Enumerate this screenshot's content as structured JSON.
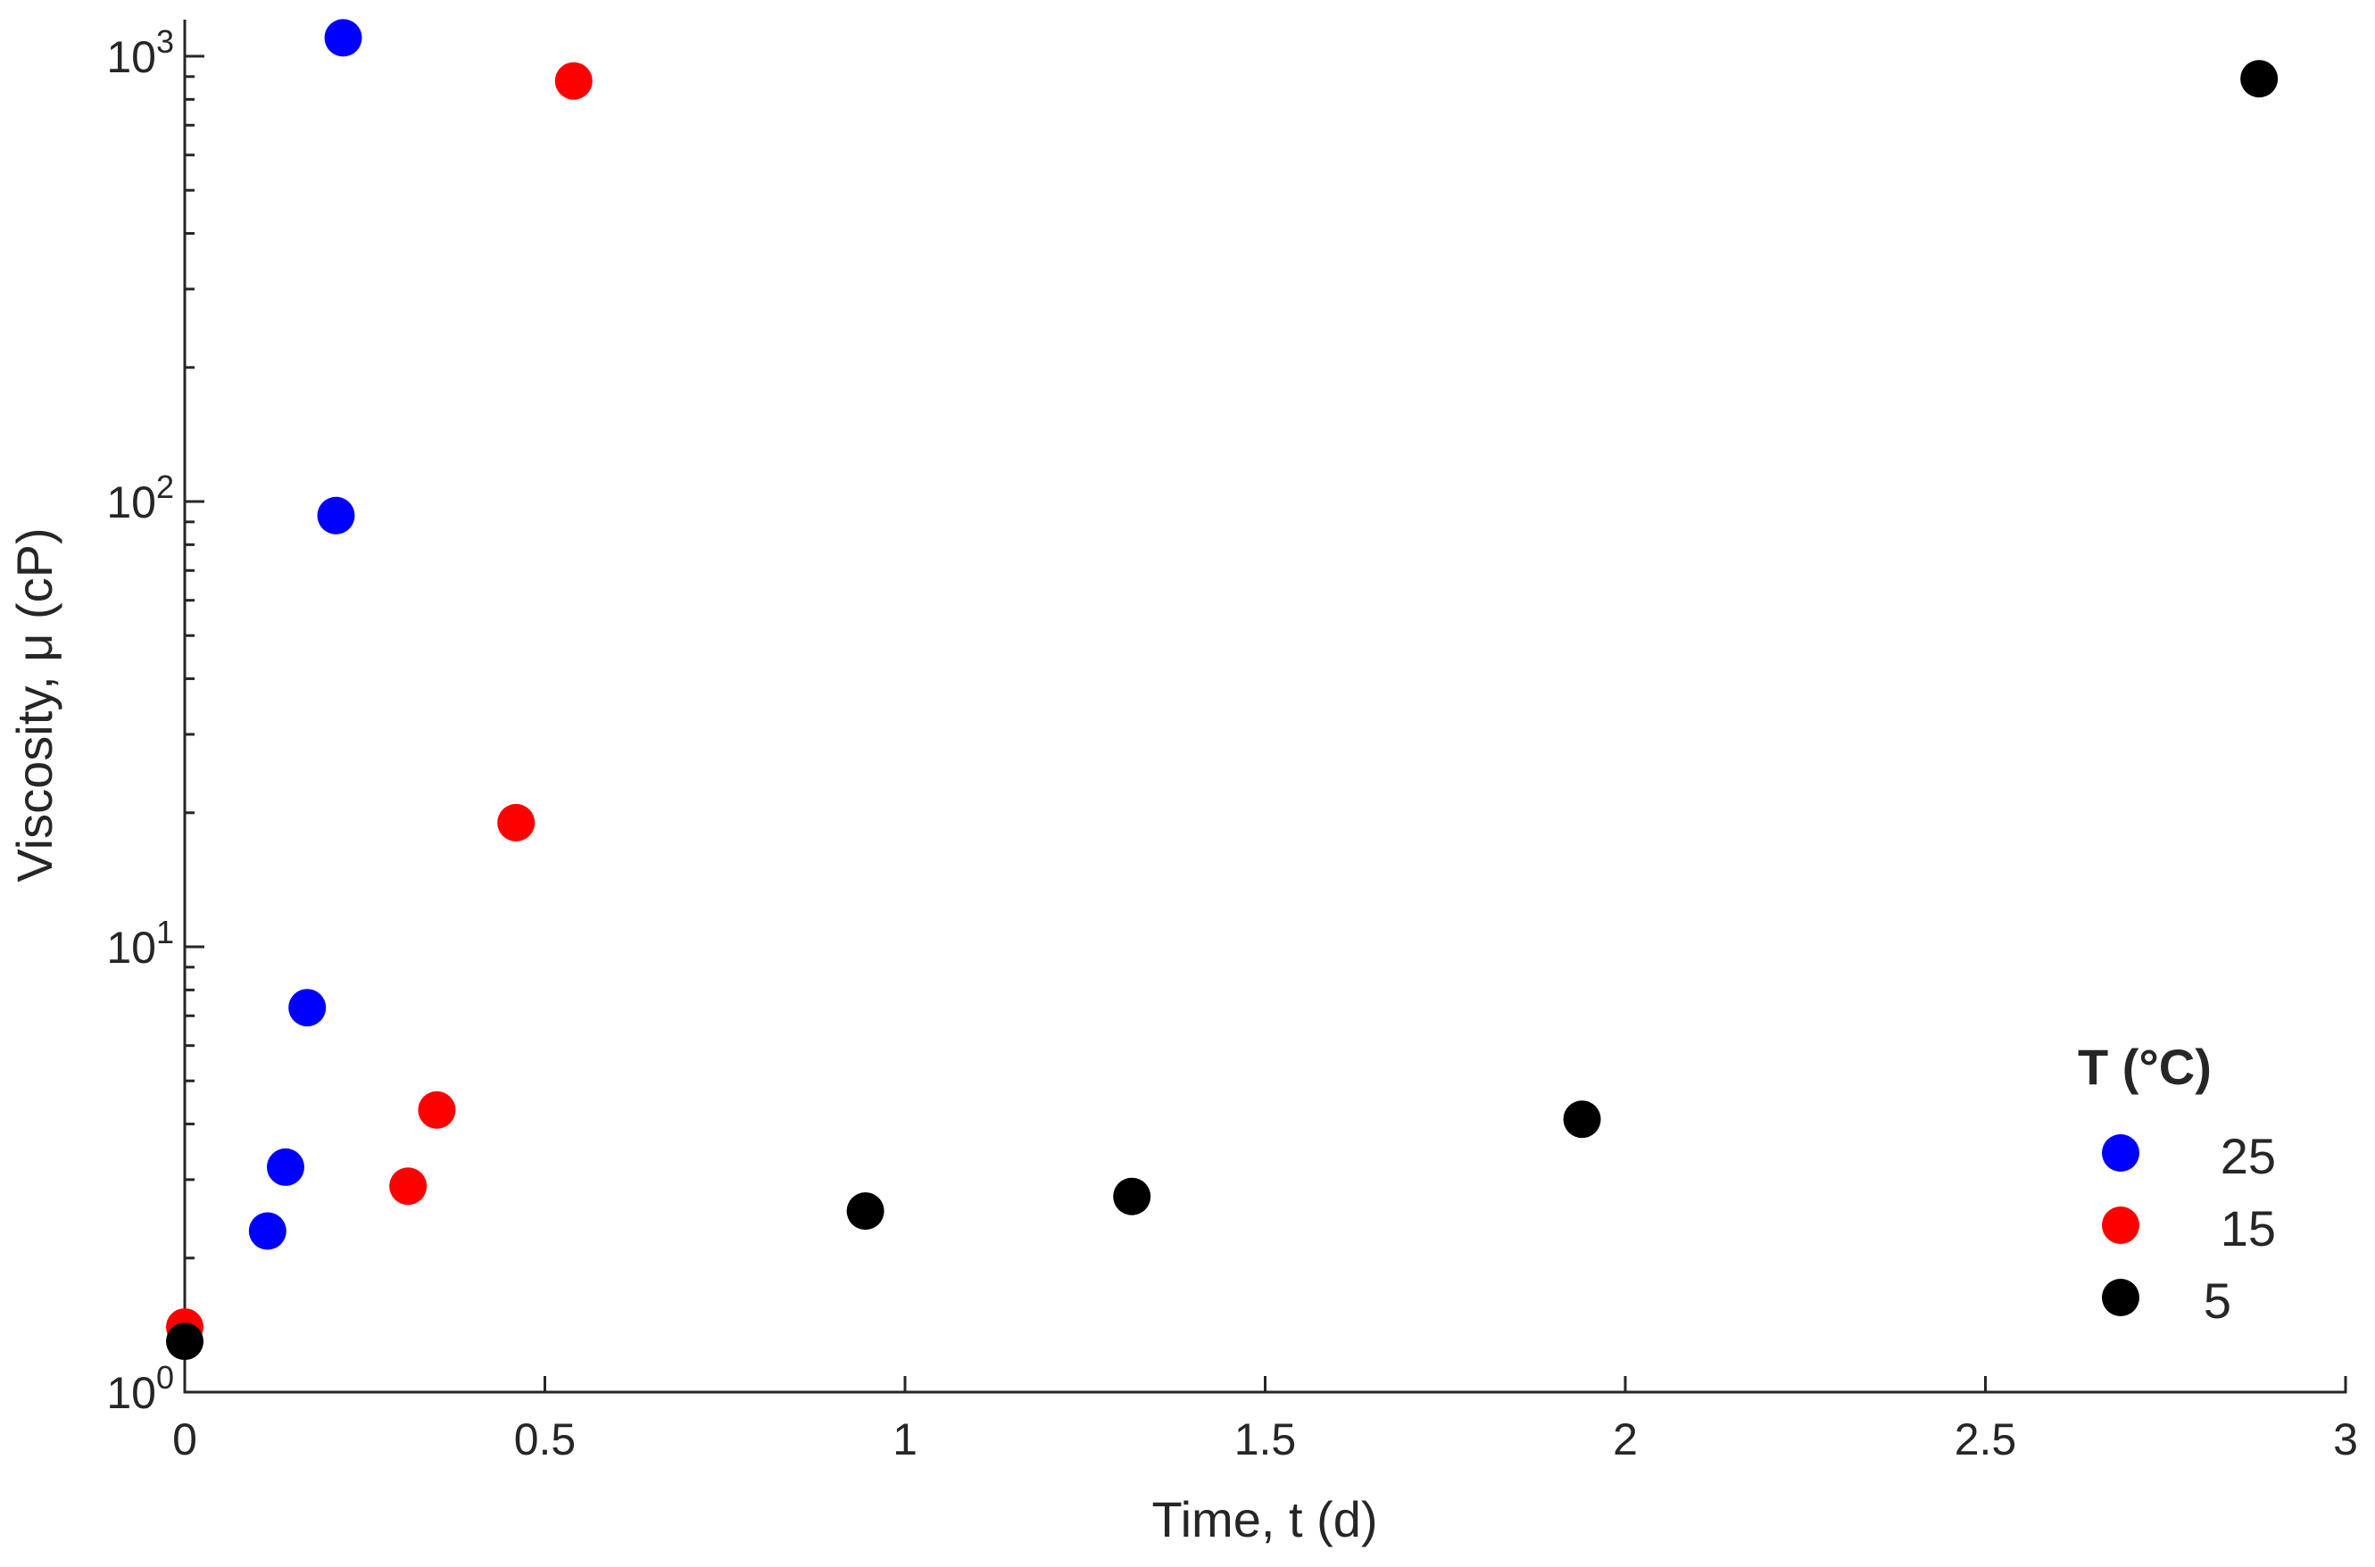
{
  "chart_data": {
    "type": "scatter",
    "xlabel": "Time, t (d)",
    "ylabel": "Viscosity, μ (cP)",
    "xlim": [
      0,
      3
    ],
    "ylim": [
      1,
      1200
    ],
    "y_scale": "log",
    "grid": false,
    "x_ticks": [
      0,
      0.5,
      1,
      1.5,
      2,
      2.5,
      3
    ],
    "x_tick_labels": [
      "0",
      "0.5",
      "1",
      "1.5",
      "2",
      "2.5",
      "3"
    ],
    "y_ticks": [
      1,
      10,
      100,
      1000
    ],
    "y_tick_labels": [
      {
        "base": "10",
        "exp": "0"
      },
      {
        "base": "10",
        "exp": "1"
      },
      {
        "base": "10",
        "exp": "2"
      },
      {
        "base": "10",
        "exp": "3"
      }
    ],
    "legend": {
      "title": "T (°C)",
      "placement": "bottom-right"
    },
    "series": [
      {
        "name": "25",
        "color": "#0000ff",
        "points": [
          {
            "x": 0.115,
            "y": 2.3
          },
          {
            "x": 0.14,
            "y": 3.2
          },
          {
            "x": 0.17,
            "y": 7.3
          },
          {
            "x": 0.21,
            "y": 93
          },
          {
            "x": 0.22,
            "y": 1100
          }
        ]
      },
      {
        "name": "15",
        "color": "#ff0000",
        "points": [
          {
            "x": 0.0,
            "y": 1.4
          },
          {
            "x": 0.31,
            "y": 2.9
          },
          {
            "x": 0.35,
            "y": 4.3
          },
          {
            "x": 0.46,
            "y": 19
          },
          {
            "x": 0.54,
            "y": 880
          }
        ]
      },
      {
        "name": "5",
        "color": "#000000",
        "points": [
          {
            "x": 0.0,
            "y": 1.3
          },
          {
            "x": 0.945,
            "y": 2.55
          },
          {
            "x": 1.315,
            "y": 2.75
          },
          {
            "x": 1.94,
            "y": 4.1
          },
          {
            "x": 2.88,
            "y": 890
          }
        ]
      }
    ]
  }
}
